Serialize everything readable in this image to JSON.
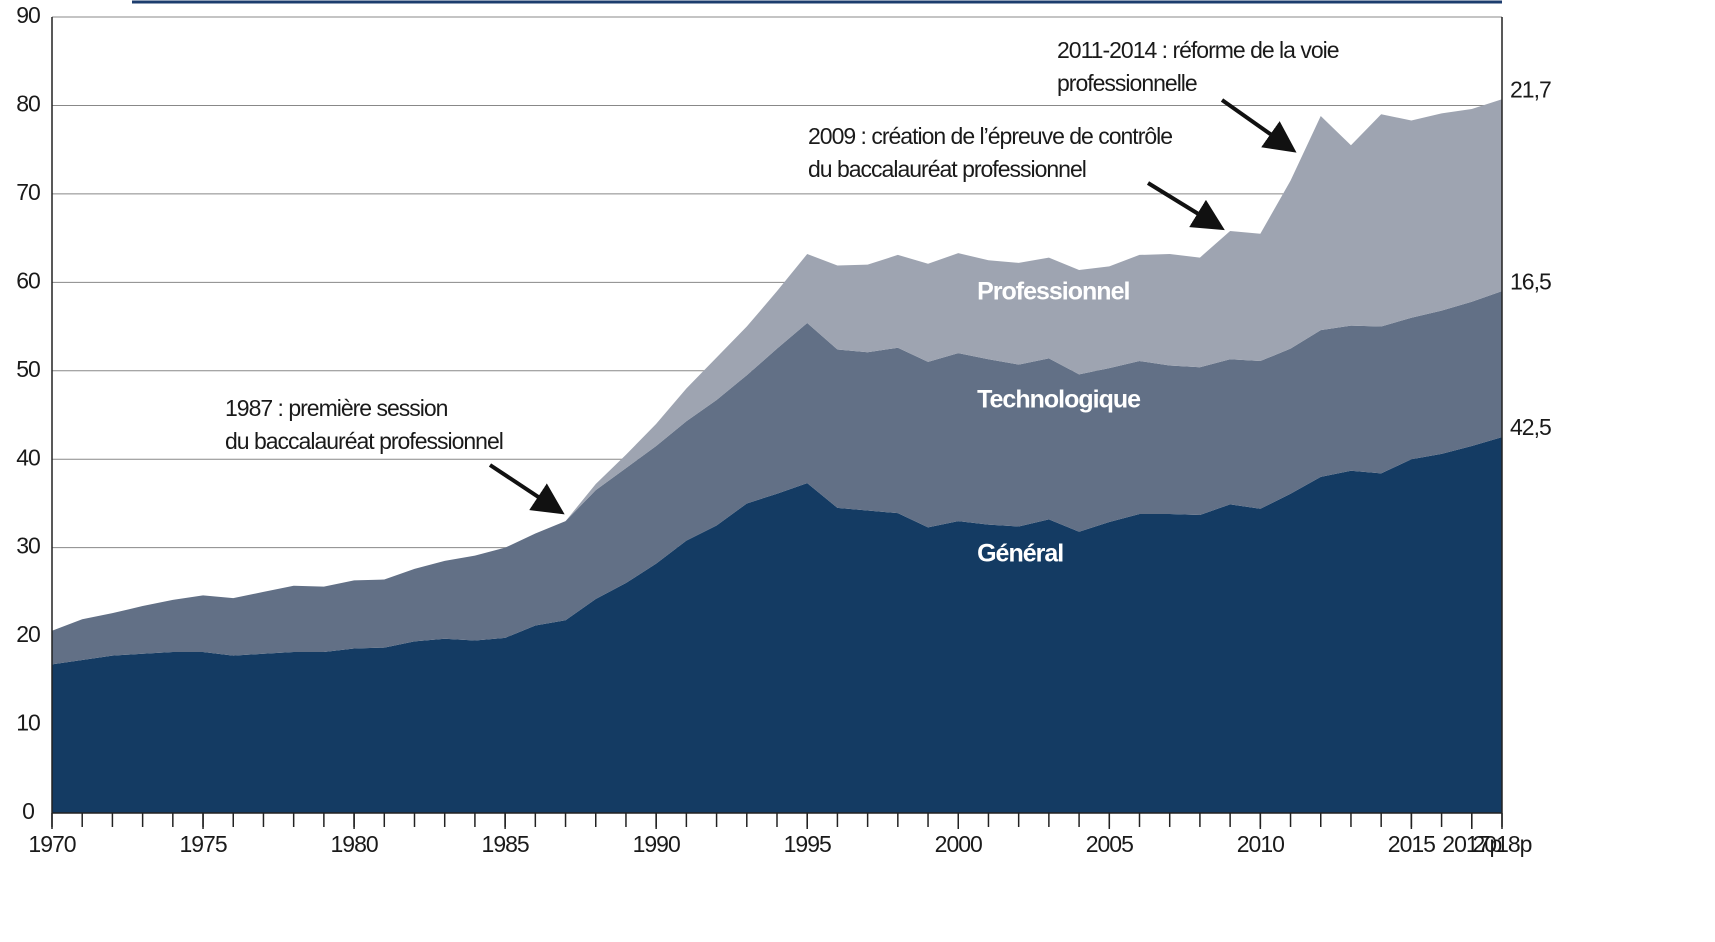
{
  "chart_data": {
    "type": "stacked-area",
    "x": [
      1970,
      1971,
      1972,
      1973,
      1974,
      1975,
      1976,
      1977,
      1978,
      1979,
      1980,
      1981,
      1982,
      1983,
      1984,
      1985,
      1986,
      1987,
      1988,
      1989,
      1990,
      1991,
      1992,
      1993,
      1994,
      1995,
      1996,
      1997,
      1998,
      1999,
      2000,
      2001,
      2002,
      2003,
      2004,
      2005,
      2006,
      2007,
      2008,
      2009,
      2010,
      2011,
      2012,
      2013,
      2014,
      2015,
      2016,
      2017,
      2018
    ],
    "xlim": [
      1970,
      2018
    ],
    "xticks": [
      1970,
      1975,
      1980,
      1985,
      1990,
      1995,
      2000,
      2005,
      2010,
      2015,
      {
        "value": 2017,
        "label": "2017p"
      },
      {
        "value": 2018,
        "label": "2018p"
      }
    ],
    "ylim": [
      0,
      90
    ],
    "yticks": [
      0,
      10,
      20,
      30,
      40,
      50,
      60,
      70,
      80,
      90
    ],
    "grid": true,
    "series": [
      {
        "name": "Général",
        "color": "#143b63",
        "values": [
          16.8,
          17.3,
          17.8,
          18.0,
          18.2,
          18.2,
          17.8,
          18.0,
          18.2,
          18.2,
          18.6,
          18.7,
          19.4,
          19.7,
          19.5,
          19.8,
          21.2,
          21.8,
          24.2,
          26.0,
          28.2,
          30.8,
          32.5,
          35.0,
          36.1,
          37.3,
          34.5,
          34.2,
          33.9,
          32.3,
          33.0,
          32.6,
          32.4,
          33.2,
          31.8,
          32.9,
          33.8,
          33.8,
          33.7,
          34.9,
          34.4,
          36.1,
          38.0,
          38.7,
          38.4,
          40.0,
          40.6,
          41.5,
          42.5
        ],
        "value_labels": [
          null,
          null,
          null,
          null,
          null,
          null,
          null,
          null,
          null,
          null,
          null,
          null,
          null,
          null,
          null,
          null,
          null,
          null,
          null,
          null,
          null,
          null,
          null,
          null,
          null,
          null,
          null,
          null,
          null,
          null,
          null,
          null,
          null,
          null,
          null,
          null,
          null,
          null,
          null,
          null,
          null,
          null,
          null,
          null,
          null,
          null,
          null,
          null,
          "42,5"
        ]
      },
      {
        "name": "Technologique",
        "color": "#627086",
        "values": [
          3.8,
          4.6,
          4.8,
          5.4,
          5.9,
          6.4,
          6.5,
          7.0,
          7.5,
          7.4,
          7.7,
          7.7,
          8.2,
          8.8,
          9.6,
          10.2,
          10.4,
          11.2,
          12.3,
          13.0,
          13.3,
          13.5,
          14.2,
          14.5,
          16.4,
          18.1,
          17.9,
          17.9,
          18.7,
          18.7,
          19.0,
          18.7,
          18.3,
          18.2,
          17.8,
          17.4,
          17.3,
          16.8,
          16.7,
          16.4,
          16.7,
          16.4,
          16.6,
          16.4,
          16.6,
          16.0,
          16.2,
          16.3,
          16.5
        ],
        "value_labels": [
          null,
          null,
          null,
          null,
          null,
          null,
          null,
          null,
          null,
          null,
          null,
          null,
          null,
          null,
          null,
          null,
          null,
          null,
          null,
          null,
          null,
          null,
          null,
          null,
          null,
          null,
          null,
          null,
          null,
          null,
          null,
          null,
          null,
          null,
          null,
          null,
          null,
          null,
          null,
          null,
          null,
          null,
          null,
          null,
          null,
          null,
          null,
          null,
          "16,5"
        ]
      },
      {
        "name": "Professionnel",
        "color": "#9ea4b1",
        "values": [
          0,
          0,
          0,
          0,
          0,
          0,
          0,
          0,
          0,
          0,
          0,
          0,
          0,
          0,
          0,
          0,
          0,
          0,
          0.7,
          1.5,
          2.5,
          3.7,
          4.8,
          5.5,
          6.5,
          7.8,
          9.5,
          9.9,
          10.5,
          11.1,
          11.3,
          11.2,
          11.5,
          11.4,
          11.8,
          11.5,
          12.0,
          12.6,
          12.4,
          14.5,
          14.4,
          19.0,
          24.2,
          20.4,
          24.0,
          22.3,
          22.3,
          21.8,
          21.7
        ],
        "value_labels": [
          null,
          null,
          null,
          null,
          null,
          null,
          null,
          null,
          null,
          null,
          null,
          null,
          null,
          null,
          null,
          null,
          null,
          null,
          null,
          null,
          null,
          null,
          null,
          null,
          null,
          null,
          null,
          null,
          null,
          null,
          null,
          null,
          null,
          null,
          null,
          null,
          null,
          null,
          null,
          null,
          null,
          null,
          null,
          null,
          null,
          null,
          null,
          null,
          "21,7"
        ]
      }
    ],
    "annotations": [
      {
        "lines": [
          "1987 : première session",
          "du baccalauréat professionnel"
        ]
      },
      {
        "lines": [
          "2009 : création de l’épreuve  de contrôle",
          "du baccalauréat  professionnel"
        ]
      },
      {
        "lines": [
          "2011-2014 : réforme de la voie",
          "professionnelle"
        ]
      }
    ]
  }
}
